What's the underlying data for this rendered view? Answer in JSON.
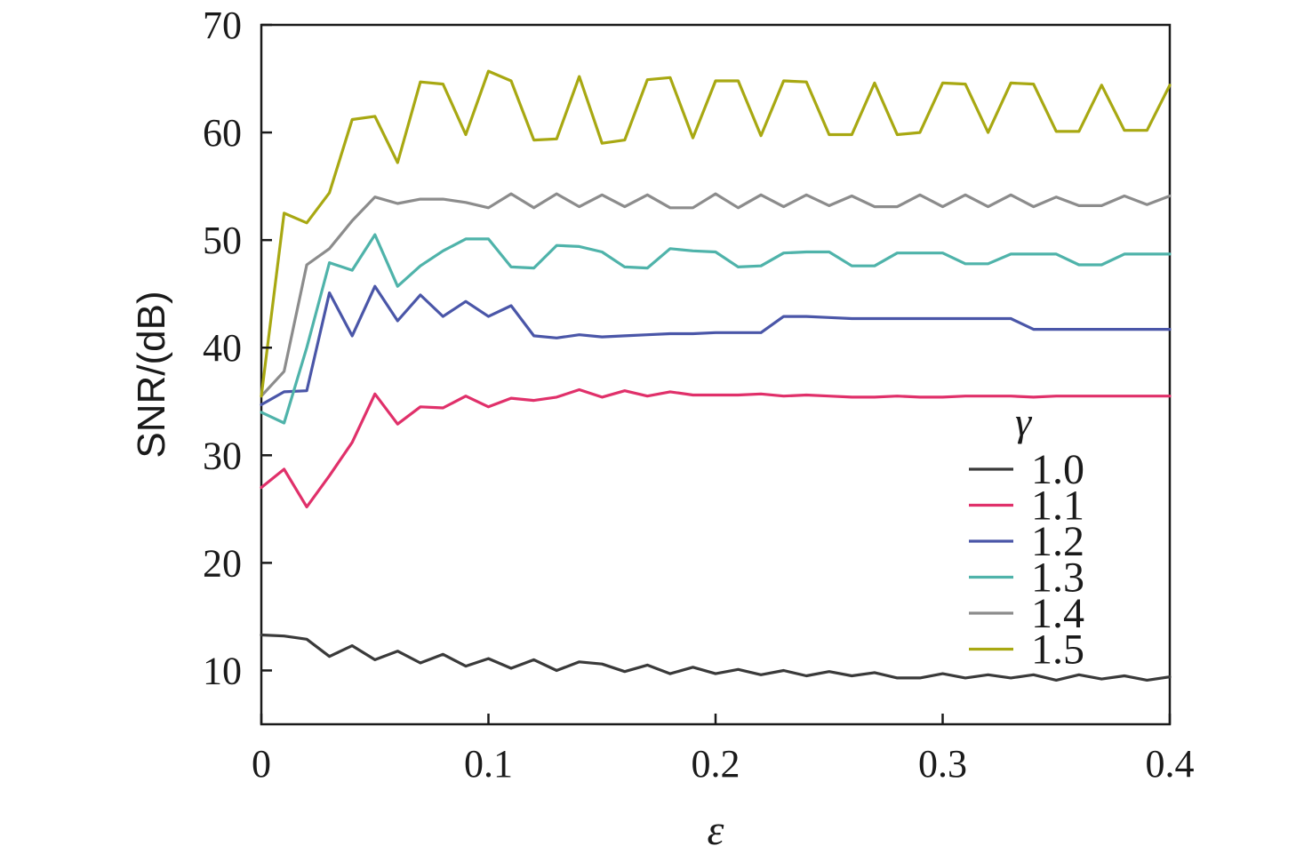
{
  "chart_data": {
    "type": "line",
    "title": "",
    "xlabel": "ε",
    "ylabel": "SNR/(dB)",
    "xlim": [
      0,
      0.4
    ],
    "ylim": [
      5,
      70
    ],
    "xticks": [
      0,
      0.1,
      0.2,
      0.3,
      0.4
    ],
    "xtick_labels": [
      "0",
      "0.1",
      "0.2",
      "0.3",
      "0.4"
    ],
    "yticks": [
      10,
      20,
      30,
      40,
      50,
      60,
      70
    ],
    "ytick_labels": [
      "10",
      "20",
      "30",
      "40",
      "50",
      "60",
      "70"
    ],
    "grid": false,
    "legend": {
      "title": "γ",
      "placement": "lower-right"
    },
    "x": [
      0,
      0.01,
      0.02,
      0.03,
      0.04,
      0.05,
      0.06,
      0.07,
      0.08,
      0.09,
      0.1,
      0.11,
      0.12,
      0.13,
      0.14,
      0.15,
      0.16,
      0.17,
      0.18,
      0.19,
      0.2,
      0.21,
      0.22,
      0.23,
      0.24,
      0.25,
      0.26,
      0.27,
      0.28,
      0.29,
      0.3,
      0.31,
      0.32,
      0.33,
      0.34,
      0.35,
      0.36,
      0.37,
      0.38,
      0.39,
      0.4
    ],
    "series": [
      {
        "name": "1.0",
        "color": "#3a3a3a",
        "values": [
          13.3,
          13.2,
          12.9,
          11.3,
          12.3,
          11.0,
          11.8,
          10.7,
          11.5,
          10.4,
          11.1,
          10.2,
          11.0,
          10.0,
          10.8,
          10.6,
          9.9,
          10.5,
          9.7,
          10.3,
          9.7,
          10.1,
          9.6,
          10.0,
          9.5,
          9.9,
          9.5,
          9.8,
          9.3,
          9.3,
          9.7,
          9.3,
          9.6,
          9.3,
          9.6,
          9.1,
          9.6,
          9.2,
          9.5,
          9.1,
          9.4
        ]
      },
      {
        "name": "1.1",
        "color": "#e0306a",
        "values": [
          27.0,
          28.7,
          25.2,
          28.1,
          31.2,
          35.7,
          32.9,
          34.5,
          34.4,
          35.5,
          34.5,
          35.3,
          35.1,
          35.4,
          36.1,
          35.4,
          36.0,
          35.5,
          35.9,
          35.6,
          35.6,
          35.6,
          35.7,
          35.5,
          35.6,
          35.5,
          35.4,
          35.4,
          35.5,
          35.4,
          35.4,
          35.5,
          35.5,
          35.5,
          35.4,
          35.5,
          35.5,
          35.5,
          35.5,
          35.5,
          35.5
        ]
      },
      {
        "name": "1.2",
        "color": "#4a56a8",
        "values": [
          34.7,
          35.9,
          36.0,
          45.1,
          41.1,
          45.7,
          42.5,
          44.9,
          42.9,
          44.3,
          42.9,
          43.9,
          41.1,
          40.9,
          41.2,
          41.0,
          41.1,
          41.2,
          41.3,
          41.3,
          41.4,
          41.4,
          41.4,
          42.9,
          42.9,
          42.8,
          42.7,
          42.7,
          42.7,
          42.7,
          42.7,
          42.7,
          42.7,
          42.7,
          41.7,
          41.7,
          41.7,
          41.7,
          41.7,
          41.7,
          41.7
        ]
      },
      {
        "name": "1.3",
        "color": "#4fb3aa",
        "values": [
          34.0,
          33.0,
          40.0,
          47.9,
          47.2,
          50.5,
          45.7,
          47.6,
          49.0,
          50.1,
          50.1,
          47.5,
          47.4,
          49.5,
          49.4,
          48.9,
          47.5,
          47.4,
          49.2,
          49.0,
          48.9,
          47.5,
          47.6,
          48.8,
          48.9,
          48.9,
          47.6,
          47.6,
          48.8,
          48.8,
          48.8,
          47.8,
          47.8,
          48.7,
          48.7,
          48.7,
          47.7,
          47.7,
          48.7,
          48.7,
          48.7
        ]
      },
      {
        "name": "1.4",
        "color": "#8c8c8c",
        "values": [
          35.5,
          37.8,
          47.7,
          49.2,
          51.8,
          54.0,
          53.4,
          53.8,
          53.8,
          53.5,
          53.0,
          54.3,
          53.0,
          54.3,
          53.1,
          54.2,
          53.1,
          54.2,
          53.0,
          53.0,
          54.3,
          53.0,
          54.2,
          53.1,
          54.2,
          53.2,
          54.1,
          53.1,
          53.1,
          54.2,
          53.1,
          54.2,
          53.1,
          54.2,
          53.1,
          54.0,
          53.2,
          53.2,
          54.1,
          53.3,
          54.1
        ]
      },
      {
        "name": "1.5",
        "color": "#a8a812",
        "values": [
          35.5,
          52.5,
          51.6,
          54.4,
          61.2,
          61.5,
          57.2,
          64.7,
          64.5,
          59.8,
          65.7,
          64.8,
          59.3,
          59.4,
          65.2,
          59.0,
          59.3,
          64.9,
          65.1,
          59.5,
          64.8,
          64.8,
          59.7,
          64.8,
          64.7,
          59.8,
          59.8,
          64.6,
          59.8,
          60.0,
          64.6,
          64.5,
          60.0,
          64.6,
          64.5,
          60.1,
          60.1,
          64.4,
          60.2,
          60.2,
          64.4
        ]
      }
    ]
  }
}
